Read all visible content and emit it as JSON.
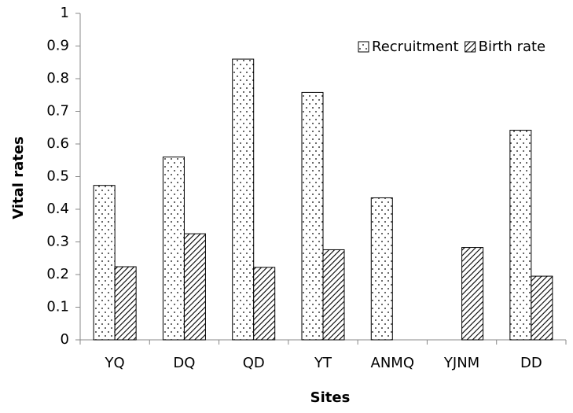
{
  "chart_data": {
    "type": "bar",
    "x_label": "Sites",
    "y_label": "Vital rates",
    "categories": [
      "YQ",
      "DQ",
      "QD",
      "YT",
      "ANMQ",
      "YJNM",
      "DD"
    ],
    "series": [
      {
        "name": "Recruitment",
        "color": "#000000",
        "pattern": "dots",
        "values": [
          0.473,
          0.56,
          0.86,
          0.758,
          0.435,
          null,
          0.642
        ]
      },
      {
        "name": "Birth rate",
        "color": "#000000",
        "pattern": "hatch",
        "values": [
          0.224,
          0.325,
          0.222,
          0.276,
          null,
          0.283,
          0.195
        ]
      }
    ],
    "ylim": [
      0,
      1
    ],
    "yticks": [
      0,
      0.1,
      0.2,
      0.3,
      0.4,
      0.5,
      0.6,
      0.7,
      0.8,
      0.9,
      1
    ],
    "grid": false,
    "legend": "top-right"
  }
}
